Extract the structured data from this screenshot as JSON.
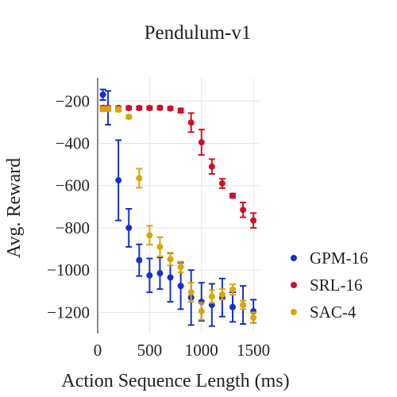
{
  "chart_data": {
    "type": "scatter",
    "title": "Pendulum-v1",
    "xlabel": "Action Sequence Length (ms)",
    "ylabel": "Avg. Reward",
    "xlim": [
      0,
      1560
    ],
    "ylim": [
      -1300,
      -90
    ],
    "xticks": [
      0,
      500,
      1000,
      1500
    ],
    "xtick_labels": [
      "0",
      "500",
      "1000",
      "1500"
    ],
    "yticks": [
      -200,
      -400,
      -600,
      -800,
      -1000,
      -1200
    ],
    "ytick_labels": [
      "−200",
      "−400",
      "−600",
      "−800",
      "−1000",
      "−1200"
    ],
    "grid": true,
    "legend": "right",
    "series": [
      {
        "name": "GPM-16",
        "color": "#1530cc",
        "points": [
          {
            "x": 50,
            "y": -170,
            "err": 25
          },
          {
            "x": 100,
            "y": -232,
            "err": 80
          },
          {
            "x": 200,
            "y": -575,
            "err": 190
          },
          {
            "x": 300,
            "y": -800,
            "err": 90
          },
          {
            "x": 400,
            "y": -953,
            "err": 75
          },
          {
            "x": 500,
            "y": -1025,
            "err": 80
          },
          {
            "x": 600,
            "y": -1015,
            "err": 75
          },
          {
            "x": 700,
            "y": -1035,
            "err": 115
          },
          {
            "x": 800,
            "y": -1075,
            "err": 110
          },
          {
            "x": 900,
            "y": -1130,
            "err": 130
          },
          {
            "x": 1000,
            "y": -1150,
            "err": 90
          },
          {
            "x": 1100,
            "y": -1165,
            "err": 100
          },
          {
            "x": 1200,
            "y": -1130,
            "err": 90
          },
          {
            "x": 1300,
            "y": -1175,
            "err": 70
          },
          {
            "x": 1400,
            "y": -1165,
            "err": 90
          },
          {
            "x": 1500,
            "y": -1195,
            "err": 55
          }
        ]
      },
      {
        "name": "SRL-16",
        "color": "#d01028",
        "points": [
          {
            "x": 50,
            "y": -232,
            "err": 8
          },
          {
            "x": 100,
            "y": -232,
            "err": 8
          },
          {
            "x": 200,
            "y": -233,
            "err": 8
          },
          {
            "x": 300,
            "y": -233,
            "err": 8
          },
          {
            "x": 400,
            "y": -233,
            "err": 8
          },
          {
            "x": 500,
            "y": -233,
            "err": 8
          },
          {
            "x": 600,
            "y": -232,
            "err": 8
          },
          {
            "x": 700,
            "y": -235,
            "err": 8
          },
          {
            "x": 800,
            "y": -245,
            "err": 10
          },
          {
            "x": 900,
            "y": -302,
            "err": 45
          },
          {
            "x": 1000,
            "y": -395,
            "err": 60
          },
          {
            "x": 1100,
            "y": -510,
            "err": 35
          },
          {
            "x": 1200,
            "y": -590,
            "err": 22
          },
          {
            "x": 1300,
            "y": -648,
            "err": 10
          },
          {
            "x": 1400,
            "y": -715,
            "err": 35
          },
          {
            "x": 1500,
            "y": -765,
            "err": 35
          }
        ]
      },
      {
        "name": "SAC-4",
        "color": "#d9a60a",
        "points": [
          {
            "x": 50,
            "y": -238,
            "err": 10
          },
          {
            "x": 100,
            "y": -238,
            "err": 10
          },
          {
            "x": 200,
            "y": -240,
            "err": 10
          },
          {
            "x": 300,
            "y": -275,
            "err": 8
          },
          {
            "x": 400,
            "y": -565,
            "err": 45
          },
          {
            "x": 500,
            "y": -835,
            "err": 45
          },
          {
            "x": 600,
            "y": -890,
            "err": 45
          },
          {
            "x": 700,
            "y": -948,
            "err": 30
          },
          {
            "x": 800,
            "y": -985,
            "err": 25
          },
          {
            "x": 900,
            "y": -1105,
            "err": 45
          },
          {
            "x": 1000,
            "y": -1195,
            "err": 40
          },
          {
            "x": 1100,
            "y": -1125,
            "err": 30
          },
          {
            "x": 1200,
            "y": -1115,
            "err": 25
          },
          {
            "x": 1300,
            "y": -1092,
            "err": 25
          },
          {
            "x": 1400,
            "y": -1165,
            "err": 20
          },
          {
            "x": 1500,
            "y": -1225,
            "err": 25
          }
        ]
      }
    ]
  }
}
